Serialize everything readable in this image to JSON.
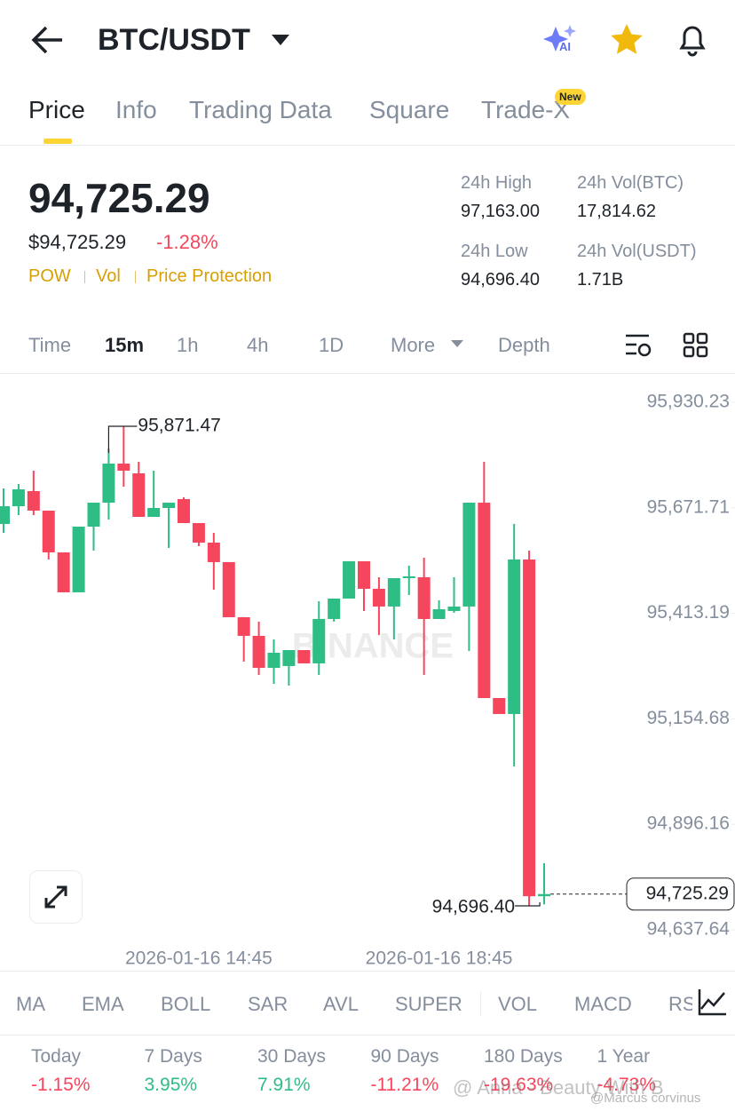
{
  "header": {
    "pair": "BTC/USDT",
    "ai_badge": "AI"
  },
  "tabs": {
    "items": [
      "Price",
      "Info",
      "Trading Data",
      "Square",
      "Trade-X"
    ],
    "badge": "New"
  },
  "ticker": {
    "price": "94,725.29",
    "fiat_price": "$94,725.29",
    "change": "-1.28%",
    "tags": [
      "POW",
      "Vol",
      "Price Protection"
    ],
    "stats": [
      {
        "label": "24h High",
        "value": "97,163.00"
      },
      {
        "label": "24h Vol(BTC)",
        "value": "17,814.62"
      },
      {
        "label": "24h Low",
        "value": "94,696.40"
      },
      {
        "label": "24h Vol(USDT)",
        "value": "1.71B"
      }
    ]
  },
  "timeframes": [
    "Time",
    "15m",
    "1h",
    "4h",
    "1D",
    "More",
    "Depth"
  ],
  "chart_data": {
    "type": "candlestick",
    "watermark": "BINANCE",
    "up_color": "#2ebd85",
    "down_color": "#f6465d",
    "categories": [
      null,
      null,
      null,
      null,
      null,
      null,
      null,
      null,
      null,
      null,
      null,
      null,
      null,
      "2026-01-16 14:45",
      null,
      null,
      null,
      null,
      null,
      null,
      null,
      null,
      null,
      null,
      null,
      null,
      null,
      null,
      null,
      "2026-01-16 18:45",
      null,
      null,
      null,
      null,
      null,
      null,
      null
    ],
    "open": [
      95632.1,
      95675.6,
      95712.6,
      95664.8,
      95562.5,
      95464.6,
      95625.6,
      95684.3,
      95780.1,
      95756.2,
      95649.5,
      95671.3,
      95693.1,
      95634.3,
      95586.4,
      95538.6,
      95403.6,
      95357.9,
      95279.6,
      95284.0,
      95323.1,
      95290.5,
      95399.3,
      95449.3,
      95540.7,
      95473.3,
      95429.8,
      95499.4,
      95501.6,
      95399.3,
      95418.9,
      95429.8,
      95684.3,
      95205.6,
      95166.5,
      95545.1,
      94720.0
    ],
    "high": [
      95719.2,
      95730.0,
      95762.7,
      95664.8,
      95562.5,
      95625.6,
      95684.3,
      95817.1,
      95871.47,
      95784.4,
      95762.7,
      95684.3,
      95697.4,
      95634.3,
      95610.4,
      95538.6,
      95403.6,
      95392.8,
      95349.2,
      95323.1,
      95323.1,
      95442.8,
      95449.3,
      95540.7,
      95540.7,
      95501.6,
      95499.4,
      95529.9,
      95549.4,
      95445.0,
      95501.6,
      95684.3,
      95784.4,
      95205.6,
      95632.1,
      95566.8,
      94800.9
    ],
    "low": [
      95610.4,
      95653.9,
      95653.9,
      95545.1,
      95464.6,
      95464.6,
      95566.8,
      95643.0,
      95723.5,
      95649.5,
      95649.5,
      95573.4,
      95634.3,
      95577.7,
      95471.1,
      95403.6,
      95294.8,
      95262.2,
      95240.4,
      95236.1,
      95290.5,
      95262.2,
      95392.8,
      95449.3,
      95418.9,
      95360.1,
      95349.2,
      95458.0,
      95262.2,
      95399.3,
      95414.5,
      95321.0,
      95205.6,
      95166.5,
      95038.1,
      94696.4,
      94700.0
    ],
    "close": [
      95675.6,
      95717.0,
      95664.8,
      95562.5,
      95464.6,
      95625.6,
      95684.3,
      95780.1,
      95762.7,
      95649.5,
      95671.3,
      95684.3,
      95634.3,
      95586.4,
      95538.6,
      95403.6,
      95357.9,
      95279.6,
      95316.6,
      95323.1,
      95290.5,
      95399.3,
      95449.3,
      95540.7,
      95473.3,
      95429.8,
      95499.4,
      95503.7,
      95399.3,
      95423.2,
      95429.8,
      95684.3,
      95205.6,
      95166.5,
      95545.1,
      94720.0,
      94725.29
    ],
    "ylim": [
      94637.64,
      95930.23
    ],
    "yticks": [
      {
        "value": 95930.23,
        "label": "95,930.23"
      },
      {
        "value": 95671.71,
        "label": "95,671.71"
      },
      {
        "value": 95413.19,
        "label": "95,413.19"
      },
      {
        "value": 95154.68,
        "label": "95,154.68"
      },
      {
        "value": 94896.16,
        "label": "94,896.16"
      },
      {
        "value": 94637.64,
        "label": "94,637.64"
      }
    ],
    "grid": false,
    "annotations": [
      {
        "value": 95871.47,
        "label": "95,871.47"
      },
      {
        "value": 94696.4,
        "label": "94,696.40"
      },
      {
        "value": 94725.29,
        "label": "94,725.29"
      }
    ]
  },
  "indicators": [
    "MA",
    "EMA",
    "BOLL",
    "SAR",
    "AVL",
    "SUPER",
    "VOL",
    "MACD",
    "RS"
  ],
  "performance": [
    {
      "period": "Today",
      "change": "-1.15%"
    },
    {
      "period": "7 Days",
      "change": "3.95%"
    },
    {
      "period": "30 Days",
      "change": "7.91%"
    },
    {
      "period": "90 Days",
      "change": "-11.21%"
    },
    {
      "period": "180 Days",
      "change": "-19.63%"
    },
    {
      "period": "1 Year",
      "change": "-4.73%"
    }
  ],
  "overlay": [
    "@ Anna - Beauty With B",
    "@Marcus corvinus"
  ]
}
